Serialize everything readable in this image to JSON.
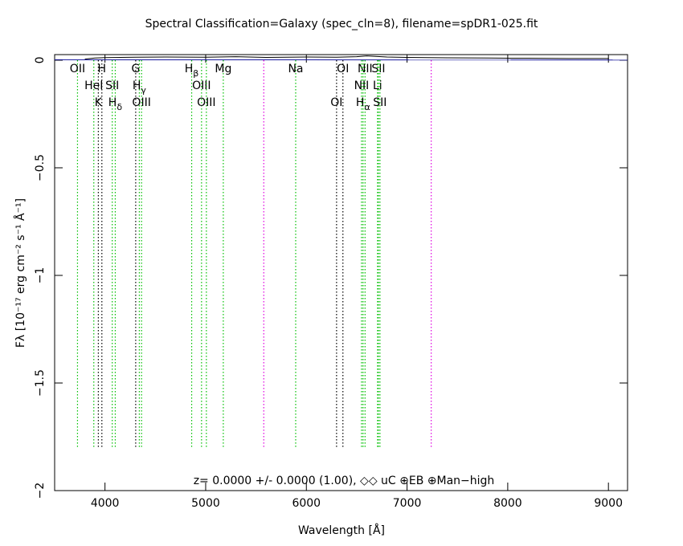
{
  "chart_data": {
    "type": "line",
    "title": "Spectral Classification=Galaxy (spec_cln=8), filename=spDR1-025.fit",
    "xlabel": "Wavelength [Å]",
    "ylabel": "Fλ [10⁻¹⁷ erg cm⁻² s⁻¹ Å⁻¹]",
    "annotation": "z= 0.0000 +/- 0.0000 (1.00), ◇◇  uC ⊕EB ⊕Man−high",
    "xlim": [
      3500,
      9190
    ],
    "ylim": [
      -2,
      0.026
    ],
    "xticks": [
      4000,
      5000,
      6000,
      7000,
      8000,
      9000
    ],
    "yticks": [
      {
        "value": 0,
        "label": "0"
      },
      {
        "value": -0.5,
        "label": "−0.5"
      },
      {
        "value": -1,
        "label": "−1"
      },
      {
        "value": -1.5,
        "label": "−1.5"
      },
      {
        "value": -2,
        "label": "−2"
      }
    ],
    "series": [
      {
        "color": "#000000",
        "x": [
          3800,
          3900,
          4000,
          4300,
          4600,
          5000,
          5300,
          5600,
          6000,
          6300,
          6500,
          6600,
          6800,
          7000,
          7400,
          7800,
          8200,
          8600,
          9000,
          9000
        ],
        "values": [
          0.005,
          0.01,
          0.012,
          0.014,
          0.015,
          0.014,
          0.016,
          0.013,
          0.015,
          0.014,
          0.016,
          0.02,
          0.015,
          0.013,
          0.011,
          0.01,
          0.009,
          0.008,
          0.008,
          0.001
        ]
      },
      {
        "color": "#1a1a9e",
        "x": [
          3500,
          9190
        ],
        "values": [
          0.002,
          0.001
        ]
      }
    ],
    "lines": [
      {
        "wavelength": 3727,
        "color": "#00c000",
        "label": "OII"
      },
      {
        "wavelength": 3969,
        "color": "#000000",
        "label": "H"
      },
      {
        "wavelength": 3889,
        "color": "#00c000",
        "label": "HeI"
      },
      {
        "wavelength": 3934,
        "color": "#000000",
        "label": "K"
      },
      {
        "wavelength": 4072,
        "color": "#00c000",
        "label": "SII"
      },
      {
        "wavelength": 4102,
        "color": "#00c000",
        "label": "H",
        "sub": "δ"
      },
      {
        "wavelength": 4305,
        "color": "#000000",
        "label": "G"
      },
      {
        "wavelength": 4341,
        "color": "#00c000",
        "label": "H",
        "sub": "γ"
      },
      {
        "wavelength": 4363,
        "color": "#00c000",
        "label": "OIII"
      },
      {
        "wavelength": 4861,
        "color": "#00c000",
        "label": "H",
        "sub": "β"
      },
      {
        "wavelength": 4959,
        "color": "#00c000",
        "label": "OIII"
      },
      {
        "wavelength": 5007,
        "color": "#00c000",
        "label": "OIII"
      },
      {
        "wavelength": 5175,
        "color": "#00c000",
        "label": "Mg"
      },
      {
        "wavelength": 5894,
        "color": "#00c000",
        "label": "Na"
      },
      {
        "wavelength": 6300,
        "color": "#000000",
        "label": "OI"
      },
      {
        "wavelength": 6363,
        "color": "#000000",
        "label": "OI"
      },
      {
        "wavelength": 6583,
        "color": "#00c000",
        "label": "NII"
      },
      {
        "wavelength": 6716,
        "color": "#00c000",
        "label": "SII"
      },
      {
        "wavelength": 6548,
        "color": "#00c000",
        "label": "NII"
      },
      {
        "wavelength": 6707,
        "color": "#00c000",
        "label": "Li"
      },
      {
        "wavelength": 6563,
        "color": "#00c000",
        "label": "H",
        "sub": "α"
      },
      {
        "wavelength": 6731,
        "color": "#00c000",
        "label": "SII"
      },
      {
        "wavelength": 5577,
        "color": "#e000e0"
      },
      {
        "wavelength": 7240,
        "color": "#e000e0"
      }
    ]
  }
}
